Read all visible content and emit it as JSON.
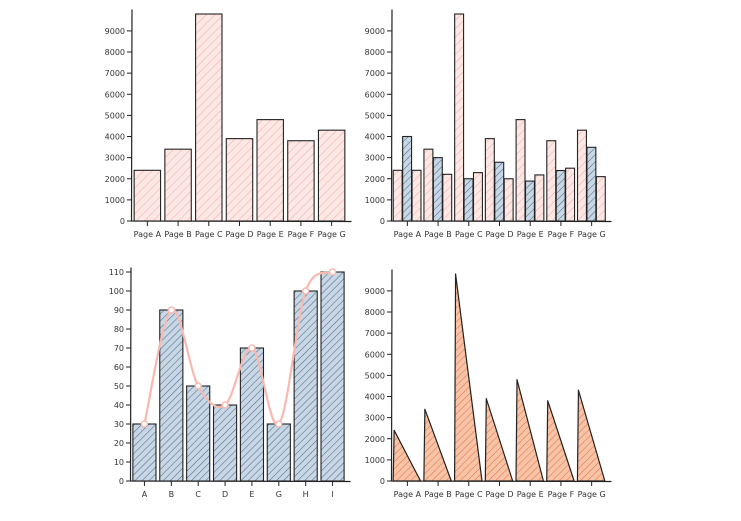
{
  "colors": {
    "pink_fill": "#fde8e6",
    "pink_hatch": "#f2b3ad",
    "blue_fill": "#c9d6e3",
    "blue_hatch": "#4a6f93",
    "orange_fill": "#f7c4a8",
    "orange_hatch": "#e8784c",
    "line": "#f7b9b0",
    "ink": "#222222"
  },
  "chart_data": [
    {
      "type": "bar",
      "title": "",
      "categories": [
        "Page A",
        "Page B",
        "Page C",
        "Page D",
        "Page E",
        "Page F",
        "Page G"
      ],
      "series": [
        {
          "values": [
            2400,
            3400,
            9800,
            3900,
            4800,
            3800,
            4300
          ]
        }
      ],
      "ylim": [
        0,
        9800
      ],
      "yticks": [
        0,
        1000,
        2000,
        3000,
        4000,
        5000,
        6000,
        7000,
        8000,
        9000
      ],
      "grid": false
    },
    {
      "type": "bar",
      "title": "",
      "categories": [
        "Page A",
        "Page B",
        "Page C",
        "Page D",
        "Page E",
        "Page F",
        "Page G"
      ],
      "series": [
        {
          "values": [
            2400,
            3400,
            9800,
            3900,
            4800,
            3800,
            4300
          ]
        },
        {
          "values": [
            4000,
            3000,
            2000,
            2780,
            1890,
            2390,
            3490
          ]
        },
        {
          "values": [
            2400,
            2210,
            2290,
            2000,
            2181,
            2500,
            2100
          ]
        }
      ],
      "ylim": [
        0,
        9800
      ],
      "yticks": [
        0,
        1000,
        2000,
        3000,
        4000,
        5000,
        6000,
        7000,
        8000,
        9000
      ],
      "grid": false
    },
    {
      "type": "bar",
      "title": "",
      "categories": [
        "A",
        "B",
        "C",
        "D",
        "E",
        "G",
        "H",
        "I"
      ],
      "series": [
        {
          "values": [
            30,
            90,
            50,
            40,
            70,
            30,
            100,
            110
          ]
        },
        {
          "type": "line",
          "values": [
            30,
            90,
            50,
            40,
            70,
            30,
            100,
            110
          ]
        }
      ],
      "ylim": [
        0,
        110
      ],
      "yticks": [
        0,
        10,
        20,
        30,
        40,
        50,
        60,
        70,
        80,
        90,
        100,
        110
      ],
      "grid": false
    },
    {
      "type": "bar",
      "title": "",
      "categories": [
        "Page A",
        "Page B",
        "Page C",
        "Page D",
        "Page E",
        "Page F",
        "Page G"
      ],
      "series": [
        {
          "values": [
            2400,
            3400,
            9800,
            3900,
            4800,
            3800,
            4300
          ]
        }
      ],
      "ylim": [
        0,
        9800
      ],
      "yticks": [
        0,
        1000,
        2000,
        3000,
        4000,
        5000,
        6000,
        7000,
        8000,
        9000
      ],
      "grid": false
    }
  ]
}
